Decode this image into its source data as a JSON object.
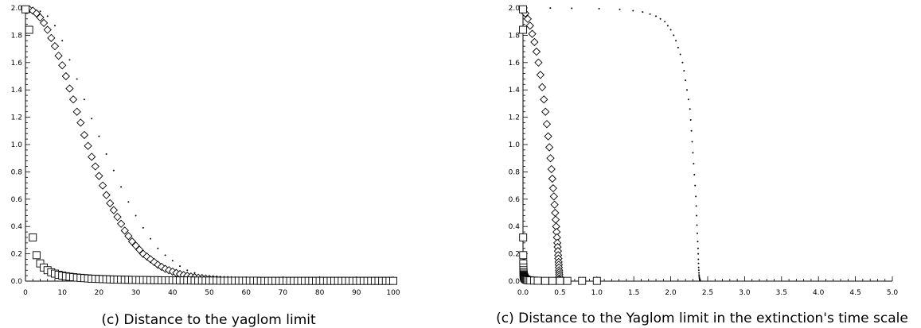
{
  "chart_data": [
    {
      "type": "scatter",
      "caption": "(c) Distance to the yaglom limit",
      "xlim": [
        0,
        100
      ],
      "ylim": [
        0,
        2.0
      ],
      "x_ticks": [
        "0",
        "10",
        "20",
        "30",
        "40",
        "50",
        "60",
        "70",
        "80",
        "90",
        "100"
      ],
      "y_ticks": [
        "0.0",
        "0.2",
        "0.4",
        "0.6",
        "0.8",
        "1.0",
        "1.2",
        "1.4",
        "1.6",
        "1.8",
        "2.0"
      ],
      "grid": false,
      "legend": "none",
      "series": [
        {
          "marker": "dot",
          "x": [
            0,
            2,
            4,
            6,
            8,
            10,
            12,
            14,
            16,
            18,
            20,
            22,
            24,
            26,
            28,
            30,
            32,
            34,
            36,
            38,
            40,
            42,
            44,
            46,
            48,
            50,
            52,
            54,
            56,
            58,
            60,
            62,
            64
          ],
          "y": [
            1.995,
            1.99,
            1.975,
            1.94,
            1.87,
            1.76,
            1.62,
            1.48,
            1.33,
            1.19,
            1.06,
            0.93,
            0.81,
            0.69,
            0.58,
            0.48,
            0.39,
            0.31,
            0.24,
            0.19,
            0.15,
            0.11,
            0.08,
            0.06,
            0.045,
            0.035,
            0.025,
            0.018,
            0.013,
            0.009,
            0.006,
            0.004,
            0.003
          ]
        },
        {
          "marker": "diamond",
          "x": [
            0,
            1,
            2,
            3,
            4,
            5,
            6,
            7,
            8,
            9,
            10,
            11,
            12,
            13,
            14,
            15,
            16,
            17,
            18,
            19,
            20,
            21,
            22,
            23,
            24,
            25,
            26,
            27,
            28,
            29,
            30,
            31,
            32,
            33,
            34,
            35,
            36,
            37,
            38,
            39,
            40,
            41,
            42,
            43,
            44,
            45,
            46,
            47,
            48,
            49,
            50,
            51,
            52,
            53,
            54,
            55,
            56,
            57,
            58,
            59,
            60,
            61,
            62,
            63,
            64
          ],
          "y": [
            1.99,
            1.99,
            1.98,
            1.96,
            1.93,
            1.89,
            1.84,
            1.78,
            1.72,
            1.65,
            1.58,
            1.5,
            1.41,
            1.33,
            1.24,
            1.16,
            1.07,
            0.99,
            0.91,
            0.84,
            0.77,
            0.7,
            0.63,
            0.57,
            0.52,
            0.47,
            0.42,
            0.37,
            0.33,
            0.29,
            0.26,
            0.23,
            0.2,
            0.18,
            0.16,
            0.14,
            0.12,
            0.105,
            0.09,
            0.08,
            0.07,
            0.06,
            0.052,
            0.045,
            0.039,
            0.034,
            0.029,
            0.025,
            0.022,
            0.019,
            0.016,
            0.014,
            0.012,
            0.01,
            0.009,
            0.008,
            0.007,
            0.006,
            0.005,
            0.004,
            0.004,
            0.003,
            0.003,
            0.002,
            0.002
          ]
        },
        {
          "marker": "square",
          "x": [
            0,
            1,
            2,
            3,
            4,
            5,
            6,
            7,
            8,
            9,
            10,
            11,
            12,
            13,
            14,
            15,
            16,
            17,
            18,
            19,
            20,
            21,
            22,
            23,
            24,
            25,
            26,
            27,
            28,
            29,
            30,
            31,
            32,
            33,
            34,
            35,
            36,
            37,
            38,
            39,
            40,
            41,
            42,
            43,
            44,
            45,
            46,
            47,
            48,
            49,
            50,
            51,
            52,
            53,
            54,
            55,
            56,
            57,
            58,
            59,
            60,
            61,
            62,
            63,
            64,
            65,
            66,
            67,
            68,
            69,
            70,
            71,
            72,
            73,
            74,
            75,
            76,
            77,
            78,
            79,
            80,
            81,
            82,
            83,
            84,
            85,
            86,
            87,
            88,
            89,
            90,
            91,
            92,
            93,
            94,
            95,
            96,
            97,
            98,
            99,
            100
          ],
          "y": [
            1.99,
            1.84,
            0.32,
            0.19,
            0.13,
            0.1,
            0.08,
            0.065,
            0.055,
            0.047,
            0.041,
            0.036,
            0.032,
            0.029,
            0.026,
            0.024,
            0.022,
            0.02,
            0.018,
            0.017,
            0.016,
            0.015,
            0.014,
            0.013,
            0.012,
            0.011,
            0.011,
            0.01,
            0.01,
            0.009,
            0.009,
            0.008,
            0.008,
            0.008,
            0.007,
            0.007,
            0.007,
            0.006,
            0.006,
            0.006,
            0.006,
            0.005,
            0.005,
            0.005,
            0.005,
            0.005,
            0.004,
            0.004,
            0.004,
            0.004,
            0.004,
            0.004,
            0.004,
            0.003,
            0.003,
            0.003,
            0.003,
            0.003,
            0.003,
            0.003,
            0.003,
            0.003,
            0.003,
            0.003,
            0.002,
            0.002,
            0.002,
            0.002,
            0.002,
            0.002,
            0.002,
            0.002,
            0.002,
            0.002,
            0.002,
            0.002,
            0.002,
            0.002,
            0.002,
            0.002,
            0.002,
            0.002,
            0.002,
            0.002,
            0.002,
            0.002,
            0.002,
            0.002,
            0.002,
            0.002,
            0.002,
            0.002,
            0.002,
            0.002,
            0.002,
            0.002,
            0.002,
            0.002,
            0.002,
            0.002,
            0.002
          ]
        }
      ]
    },
    {
      "type": "scatter",
      "caption": "(c) Distance to the Yaglom limit in the extinction's time scale",
      "xlim": [
        0,
        5.0
      ],
      "ylim": [
        0,
        2.0
      ],
      "x_ticks": [
        "0.0",
        "0.5",
        "1.0",
        "1.5",
        "2.0",
        "2.5",
        "3.0",
        "3.5",
        "4.0",
        "4.5",
        "5.0"
      ],
      "y_ticks": [
        "0.0",
        "0.2",
        "0.4",
        "0.6",
        "0.8",
        "1.0",
        "1.2",
        "1.4",
        "1.6",
        "1.8",
        "2.0"
      ],
      "grid": false,
      "legend": "none",
      "series": [
        {
          "marker": "dot",
          "x": [
            0.0,
            0.37,
            0.66,
            1.03,
            1.31,
            1.49,
            1.62,
            1.72,
            1.8,
            1.86,
            1.92,
            1.96,
            2.0,
            2.04,
            2.07,
            2.1,
            2.13,
            2.16,
            2.18,
            2.2,
            2.22,
            2.24,
            2.26,
            2.27,
            2.28,
            2.29,
            2.3,
            2.31,
            2.32,
            2.33,
            2.34,
            2.345,
            2.35,
            2.355,
            2.36,
            2.365,
            2.37,
            2.372,
            2.374,
            2.376,
            2.378,
            2.38,
            2.382,
            2.384,
            2.386,
            2.388,
            2.39,
            2.392,
            2.394,
            2.396,
            2.398,
            2.4
          ],
          "y": [
            2.0,
            1.999,
            1.998,
            1.995,
            1.99,
            1.98,
            1.97,
            1.955,
            1.94,
            1.92,
            1.9,
            1.87,
            1.84,
            1.8,
            1.76,
            1.71,
            1.66,
            1.6,
            1.54,
            1.47,
            1.4,
            1.33,
            1.26,
            1.18,
            1.1,
            1.02,
            0.94,
            0.86,
            0.78,
            0.7,
            0.62,
            0.55,
            0.48,
            0.41,
            0.35,
            0.29,
            0.24,
            0.2,
            0.16,
            0.13,
            0.1,
            0.08,
            0.06,
            0.045,
            0.034,
            0.025,
            0.018,
            0.013,
            0.009,
            0.006,
            0.004,
            0.002
          ]
        },
        {
          "marker": "diamond",
          "x": [
            0.0,
            0.032,
            0.064,
            0.095,
            0.125,
            0.155,
            0.183,
            0.21,
            0.236,
            0.26,
            0.283,
            0.304,
            0.323,
            0.341,
            0.357,
            0.372,
            0.385,
            0.397,
            0.408,
            0.418,
            0.427,
            0.435,
            0.442,
            0.449,
            0.455,
            0.46,
            0.465,
            0.469,
            0.473,
            0.476,
            0.479,
            0.482,
            0.484,
            0.486,
            0.488,
            0.49,
            0.491,
            0.492,
            0.493,
            0.494
          ],
          "y": [
            1.99,
            1.96,
            1.92,
            1.87,
            1.81,
            1.75,
            1.68,
            1.6,
            1.51,
            1.42,
            1.33,
            1.24,
            1.15,
            1.06,
            0.98,
            0.9,
            0.82,
            0.75,
            0.68,
            0.62,
            0.56,
            0.5,
            0.45,
            0.4,
            0.36,
            0.32,
            0.28,
            0.25,
            0.22,
            0.19,
            0.165,
            0.14,
            0.12,
            0.1,
            0.08,
            0.065,
            0.05,
            0.035,
            0.02,
            0.01
          ]
        },
        {
          "marker": "square",
          "x": [
            0.0,
            0.001,
            0.002,
            0.003,
            0.004,
            0.005,
            0.006,
            0.007,
            0.008,
            0.009,
            0.01,
            0.012,
            0.014,
            0.016,
            0.018,
            0.02,
            0.025,
            0.03,
            0.04,
            0.05,
            0.06,
            0.08,
            0.1,
            0.15,
            0.2,
            0.3,
            0.4,
            0.5,
            0.6,
            0.8,
            1.0
          ],
          "y": [
            1.99,
            1.84,
            0.32,
            0.19,
            0.13,
            0.1,
            0.08,
            0.065,
            0.055,
            0.047,
            0.041,
            0.036,
            0.032,
            0.029,
            0.026,
            0.024,
            0.02,
            0.016,
            0.012,
            0.01,
            0.008,
            0.006,
            0.005,
            0.004,
            0.003,
            0.002,
            0.002,
            0.002,
            0.002,
            0.002,
            0.002
          ]
        }
      ]
    }
  ]
}
